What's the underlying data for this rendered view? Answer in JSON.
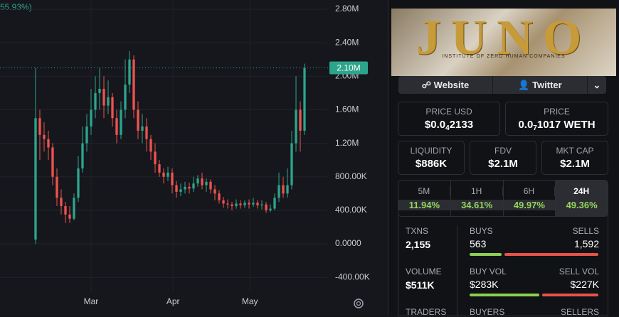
{
  "chart_data": {
    "type": "candlestick",
    "change_label": "55.93%)",
    "ohlc": [
      [
        0.05,
        2.1,
        0.0,
        1.5
      ],
      [
        1.5,
        1.6,
        1.0,
        1.3
      ],
      [
        1.3,
        1.45,
        1.1,
        1.25
      ],
      [
        1.25,
        1.35,
        1.0,
        1.15
      ],
      [
        1.15,
        1.2,
        0.7,
        0.8
      ],
      [
        0.8,
        0.9,
        0.45,
        0.55
      ],
      [
        0.55,
        0.65,
        0.35,
        0.45
      ],
      [
        0.45,
        0.5,
        0.25,
        0.35
      ],
      [
        0.35,
        0.45,
        0.25,
        0.3
      ],
      [
        0.3,
        0.6,
        0.28,
        0.55
      ],
      [
        0.55,
        1.05,
        0.5,
        0.9
      ],
      [
        0.9,
        1.4,
        0.85,
        1.2
      ],
      [
        1.2,
        1.55,
        1.1,
        1.4
      ],
      [
        1.4,
        1.85,
        1.3,
        1.6
      ],
      [
        1.6,
        2.0,
        1.5,
        1.8
      ],
      [
        1.8,
        2.1,
        1.6,
        1.85
      ],
      [
        1.85,
        2.0,
        1.5,
        1.65
      ],
      [
        1.65,
        1.95,
        1.55,
        1.75
      ],
      [
        1.75,
        1.8,
        1.4,
        1.5
      ],
      [
        1.5,
        1.6,
        1.2,
        1.3
      ],
      [
        1.3,
        1.7,
        1.25,
        1.6
      ],
      [
        1.6,
        2.2,
        1.5,
        1.9
      ],
      [
        1.9,
        2.3,
        1.8,
        2.2
      ],
      [
        2.2,
        2.25,
        1.5,
        1.6
      ],
      [
        1.6,
        1.7,
        1.25,
        1.35
      ],
      [
        1.35,
        1.55,
        1.2,
        1.4
      ],
      [
        1.4,
        1.5,
        1.1,
        1.25
      ],
      [
        1.25,
        1.3,
        1.0,
        1.1
      ],
      [
        1.1,
        1.2,
        0.85,
        0.95
      ],
      [
        0.95,
        1.0,
        0.8,
        0.85
      ],
      [
        0.85,
        0.9,
        0.72,
        0.8
      ],
      [
        0.8,
        0.92,
        0.75,
        0.85
      ],
      [
        0.85,
        0.9,
        0.6,
        0.7
      ],
      [
        0.7,
        0.75,
        0.55,
        0.62
      ],
      [
        0.62,
        0.72,
        0.57,
        0.65
      ],
      [
        0.65,
        0.74,
        0.6,
        0.68
      ],
      [
        0.68,
        0.73,
        0.6,
        0.66
      ],
      [
        0.66,
        0.8,
        0.62,
        0.72
      ],
      [
        0.72,
        0.82,
        0.68,
        0.78
      ],
      [
        0.78,
        0.85,
        0.65,
        0.7
      ],
      [
        0.7,
        0.78,
        0.62,
        0.74
      ],
      [
        0.74,
        0.77,
        0.6,
        0.65
      ],
      [
        0.65,
        0.7,
        0.52,
        0.6
      ],
      [
        0.6,
        0.64,
        0.48,
        0.52
      ],
      [
        0.52,
        0.56,
        0.43,
        0.48
      ],
      [
        0.48,
        0.53,
        0.42,
        0.47
      ],
      [
        0.47,
        0.5,
        0.4,
        0.45
      ],
      [
        0.45,
        0.53,
        0.42,
        0.48
      ],
      [
        0.48,
        0.52,
        0.42,
        0.46
      ],
      [
        0.46,
        0.52,
        0.43,
        0.49
      ],
      [
        0.49,
        0.53,
        0.42,
        0.47
      ],
      [
        0.47,
        0.55,
        0.44,
        0.49
      ],
      [
        0.49,
        0.52,
        0.42,
        0.46
      ],
      [
        0.46,
        0.52,
        0.41,
        0.47
      ],
      [
        0.47,
        0.5,
        0.37,
        0.4
      ],
      [
        0.4,
        0.47,
        0.38,
        0.42
      ],
      [
        0.42,
        0.6,
        0.4,
        0.55
      ],
      [
        0.55,
        0.85,
        0.5,
        0.7
      ],
      [
        0.7,
        0.8,
        0.55,
        0.6
      ],
      [
        0.6,
        0.9,
        0.55,
        0.7
      ],
      [
        0.7,
        1.35,
        0.65,
        1.2
      ],
      [
        1.2,
        2.0,
        1.1,
        1.6
      ],
      [
        1.6,
        1.7,
        1.1,
        1.35
      ],
      [
        1.35,
        2.15,
        1.3,
        2.1
      ]
    ],
    "up_color": "#2da58c",
    "down_color": "#ef5350",
    "xlim": [
      -8.33,
      68.33
    ],
    "xticks": [
      {
        "value": 13,
        "label": "Mar"
      },
      {
        "value": 32.2,
        "label": "Apr"
      },
      {
        "value": 50.2,
        "label": "May"
      }
    ],
    "ylim": [
      -0.568,
      2.91
    ],
    "yticks": [
      {
        "value": 2.8,
        "label": "2.80M"
      },
      {
        "value": 2.4,
        "label": "2.40M"
      },
      {
        "value": 2.0,
        "label": "2.00M"
      },
      {
        "value": 1.6,
        "label": "1.60M"
      },
      {
        "value": 1.2,
        "label": "1.20M"
      },
      {
        "value": 0.8,
        "label": "800.00K"
      },
      {
        "value": 0.4,
        "label": "400.00K"
      },
      {
        "value": 0,
        "label": "0.0000"
      },
      {
        "value": -0.4,
        "label": "-400.00K"
      }
    ],
    "last_price": {
      "value": 2.1,
      "label": "2.10M"
    },
    "grid": true
  },
  "panel": {
    "banner": {
      "title": "JUNO",
      "subtitle": "INSTITUTE OF ZERO HUMAN COMPANIES"
    },
    "links": [
      "Website",
      "Twitter"
    ],
    "price_usd": {
      "label": "PRICE USD",
      "parts": [
        "$0.0",
        "4",
        "2133"
      ]
    },
    "price": {
      "label": "PRICE",
      "parts": [
        "0.0",
        "7",
        "1017 WETH"
      ]
    },
    "metrics": [
      {
        "label": "LIQUIDITY",
        "value": "$886K"
      },
      {
        "label": "FDV",
        "value": "$2.1M"
      },
      {
        "label": "MKT CAP",
        "value": "$2.1M"
      }
    ],
    "tabs": [
      {
        "label": "5M",
        "value": "11.94%"
      },
      {
        "label": "1H",
        "value": "34.61%"
      },
      {
        "label": "6H",
        "value": "49.97%"
      },
      {
        "label": "24H",
        "value": "49.36%"
      }
    ],
    "txns": {
      "label": "TXNS",
      "value": "2,155"
    },
    "buys": {
      "label": "BUYS",
      "value": "563"
    },
    "sells": {
      "label": "SELLS",
      "value": "1,592"
    },
    "volume": {
      "label": "VOLUME",
      "value": "$511K"
    },
    "buy_vol": {
      "label": "BUY VOL",
      "value": "$283K"
    },
    "sell_vol": {
      "label": "SELL VOL",
      "value": "$227K"
    },
    "traders": {
      "label": "TRADERS"
    },
    "buyers": {
      "label": "BUYERS"
    },
    "sellers": {
      "label": "SELLERS"
    }
  }
}
